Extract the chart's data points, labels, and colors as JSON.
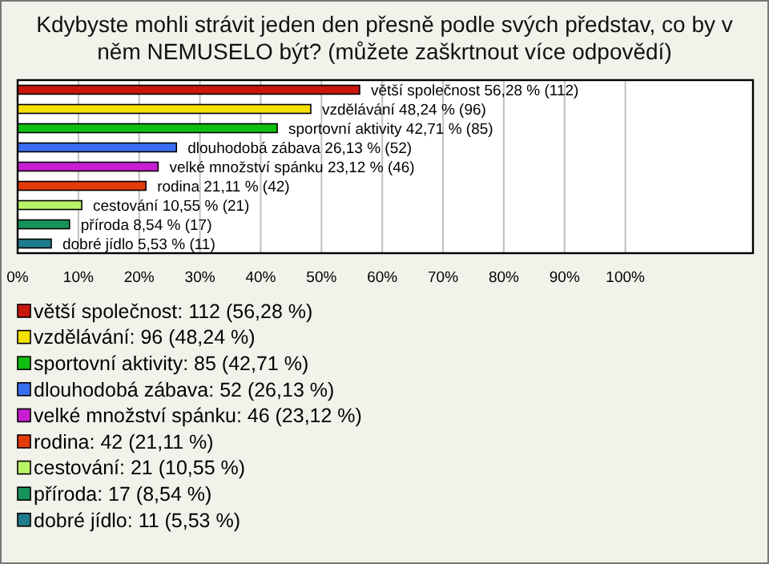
{
  "chart_data": {
    "type": "bar",
    "orientation": "horizontal",
    "title": "Kdybyste mohli strávit jeden den přesně podle svých představ, co by v něm NEMUSELO být? (můžete zaškrtnout více odpovědí)",
    "categories": [
      null,
      null,
      null,
      null,
      null,
      null,
      null,
      null,
      null
    ],
    "series": [
      {
        "name": "větší společnost: 112 (56,28 %)",
        "color": "#c8170c",
        "values": [
          56.28,
          null,
          null,
          null,
          null,
          null,
          null,
          null,
          null
        ],
        "value_labels": [
          "větší společnost 56,28 % (112)",
          null,
          null,
          null,
          null,
          null,
          null,
          null,
          null
        ]
      },
      {
        "name": "vzdělávání: 96 (48,24 %)",
        "color": "#f5e000",
        "values": [
          null,
          48.24,
          null,
          null,
          null,
          null,
          null,
          null,
          null
        ],
        "value_labels": [
          null,
          "vzdělávání 48,24 % (96)",
          null,
          null,
          null,
          null,
          null,
          null,
          null
        ]
      },
      {
        "name": "sportovní aktivity: 85 (42,71 %)",
        "color": "#10c010",
        "values": [
          null,
          null,
          42.71,
          null,
          null,
          null,
          null,
          null,
          null
        ],
        "value_labels": [
          null,
          null,
          "sportovní aktivity 42,71 % (85)",
          null,
          null,
          null,
          null,
          null,
          null
        ]
      },
      {
        "name": "dlouhodobá zábava: 52 (26,13 %)",
        "color": "#3a6ef0",
        "values": [
          null,
          null,
          null,
          26.13,
          null,
          null,
          null,
          null,
          null
        ],
        "value_labels": [
          null,
          null,
          null,
          "dlouhodobá zábava 26,13 % (52)",
          null,
          null,
          null,
          null,
          null
        ]
      },
      {
        "name": "velké množství spánku: 46 (23,12 %)",
        "color": "#c81ed2",
        "values": [
          null,
          null,
          null,
          null,
          23.12,
          null,
          null,
          null,
          null
        ],
        "value_labels": [
          null,
          null,
          null,
          null,
          "velké množství spánku 23,12 % (46)",
          null,
          null,
          null,
          null
        ]
      },
      {
        "name": "rodina: 42 (21,11 %)",
        "color": "#e53a0a",
        "values": [
          null,
          null,
          null,
          null,
          null,
          21.11,
          null,
          null,
          null
        ],
        "value_labels": [
          null,
          null,
          null,
          null,
          null,
          "rodina 21,11 % (42)",
          null,
          null,
          null
        ]
      },
      {
        "name": "cestování: 21 (10,55 %)",
        "color": "#b8f566",
        "values": [
          null,
          null,
          null,
          null,
          null,
          null,
          10.55,
          null,
          null
        ],
        "value_labels": [
          null,
          null,
          null,
          null,
          null,
          null,
          "cestování 10,55 % (21)",
          null,
          null
        ]
      },
      {
        "name": "příroda: 17 (8,54 %)",
        "color": "#17935a",
        "values": [
          null,
          null,
          null,
          null,
          null,
          null,
          null,
          8.54,
          null
        ],
        "value_labels": [
          null,
          null,
          null,
          null,
          null,
          null,
          null,
          "příroda 8,54 % (17)",
          null
        ]
      },
      {
        "name": "dobré jídlo: 11 (5,53 %)",
        "color": "#1f7c8c",
        "values": [
          null,
          null,
          null,
          null,
          null,
          null,
          null,
          null,
          5.53
        ],
        "value_labels": [
          null,
          null,
          null,
          null,
          null,
          null,
          null,
          null,
          "dobré jídlo 5,53 % (11)"
        ]
      }
    ],
    "xlim": [
      0,
      121
    ],
    "xticks": [
      {
        "value": 0,
        "label": "0%"
      },
      {
        "value": 10,
        "label": "10%"
      },
      {
        "value": 20,
        "label": "20%"
      },
      {
        "value": 30,
        "label": "30%"
      },
      {
        "value": 40,
        "label": "40%"
      },
      {
        "value": 50,
        "label": "50%"
      },
      {
        "value": 60,
        "label": "60%"
      },
      {
        "value": 70,
        "label": "70%"
      },
      {
        "value": 80,
        "label": "80%"
      },
      {
        "value": 90,
        "label": "90%"
      },
      {
        "value": 100,
        "label": "100%"
      }
    ],
    "grid": "x",
    "legend": "bottom"
  }
}
